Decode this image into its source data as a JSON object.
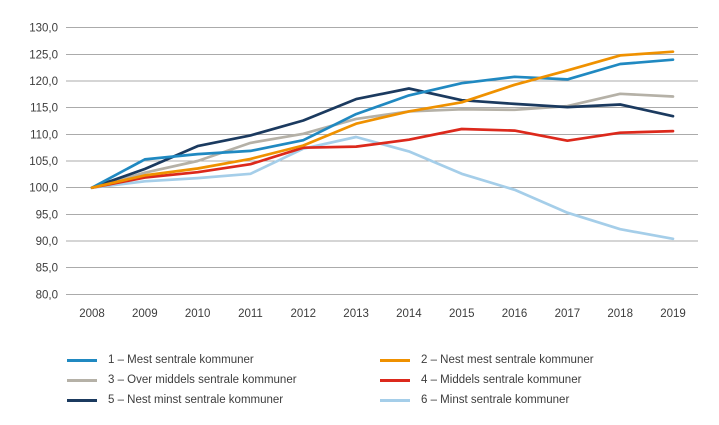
{
  "chart_data": {
    "type": "line",
    "title": "",
    "x": [
      2008,
      2009,
      2010,
      2011,
      2012,
      2013,
      2014,
      2015,
      2016,
      2017,
      2018,
      2019
    ],
    "y_axis": {
      "min": 80,
      "max": 130,
      "step": 5,
      "tick_labels": [
        "130,0",
        "125,0",
        "120,0",
        "115,0",
        "110,0",
        "105,0",
        "100,0",
        "95,0",
        "90,0",
        "85,0",
        "80,0"
      ],
      "grid": true,
      "grid_color": "#ababab"
    },
    "x_axis": {
      "tick_labels": [
        "2008",
        "2009",
        "2010",
        "2011",
        "2012",
        "2013",
        "2014",
        "2015",
        "2016",
        "2017",
        "2018",
        "2019"
      ]
    },
    "legend_position": "bottom",
    "series": [
      {
        "name": "1 – Mest sentrale kommuner",
        "color": "#2089C1",
        "values": [
          100.0,
          105.3,
          106.3,
          106.9,
          108.9,
          113.8,
          117.3,
          119.6,
          120.8,
          120.3,
          123.2,
          124.0
        ]
      },
      {
        "name": "2 – Nest mest sentrale kommuner",
        "color": "#EF9100",
        "values": [
          100.0,
          102.3,
          103.6,
          105.4,
          107.9,
          112.0,
          114.3,
          116.0,
          119.3,
          122.0,
          124.8,
          125.5
        ]
      },
      {
        "name": "3 – Over middels sentrale kommuner",
        "color": "#B5B1A7",
        "values": [
          100.0,
          102.8,
          105.0,
          108.4,
          110.1,
          112.9,
          114.3,
          114.7,
          114.6,
          115.3,
          117.6,
          117.1
        ]
      },
      {
        "name": "4 – Middels sentrale kommuner",
        "color": "#DC291C",
        "values": [
          100.0,
          101.9,
          102.9,
          104.4,
          107.5,
          107.7,
          109.0,
          111.0,
          110.7,
          108.8,
          110.3,
          110.6
        ]
      },
      {
        "name": "5 – Nest minst sentrale kommuner",
        "color": "#1B3A5F",
        "values": [
          100.0,
          103.5,
          107.8,
          109.8,
          112.6,
          116.6,
          118.6,
          116.4,
          115.7,
          115.1,
          115.6,
          113.4
        ]
      },
      {
        "name": "6 – Minst sentrale kommuner",
        "color": "#A5CEE9",
        "values": [
          100.0,
          101.2,
          101.8,
          102.6,
          107.3,
          109.5,
          106.8,
          102.6,
          99.6,
          95.3,
          92.2,
          90.4
        ]
      }
    ],
    "draw_order": [
      5,
      2,
      4,
      3,
      0,
      1
    ],
    "line_width": 2.7
  }
}
